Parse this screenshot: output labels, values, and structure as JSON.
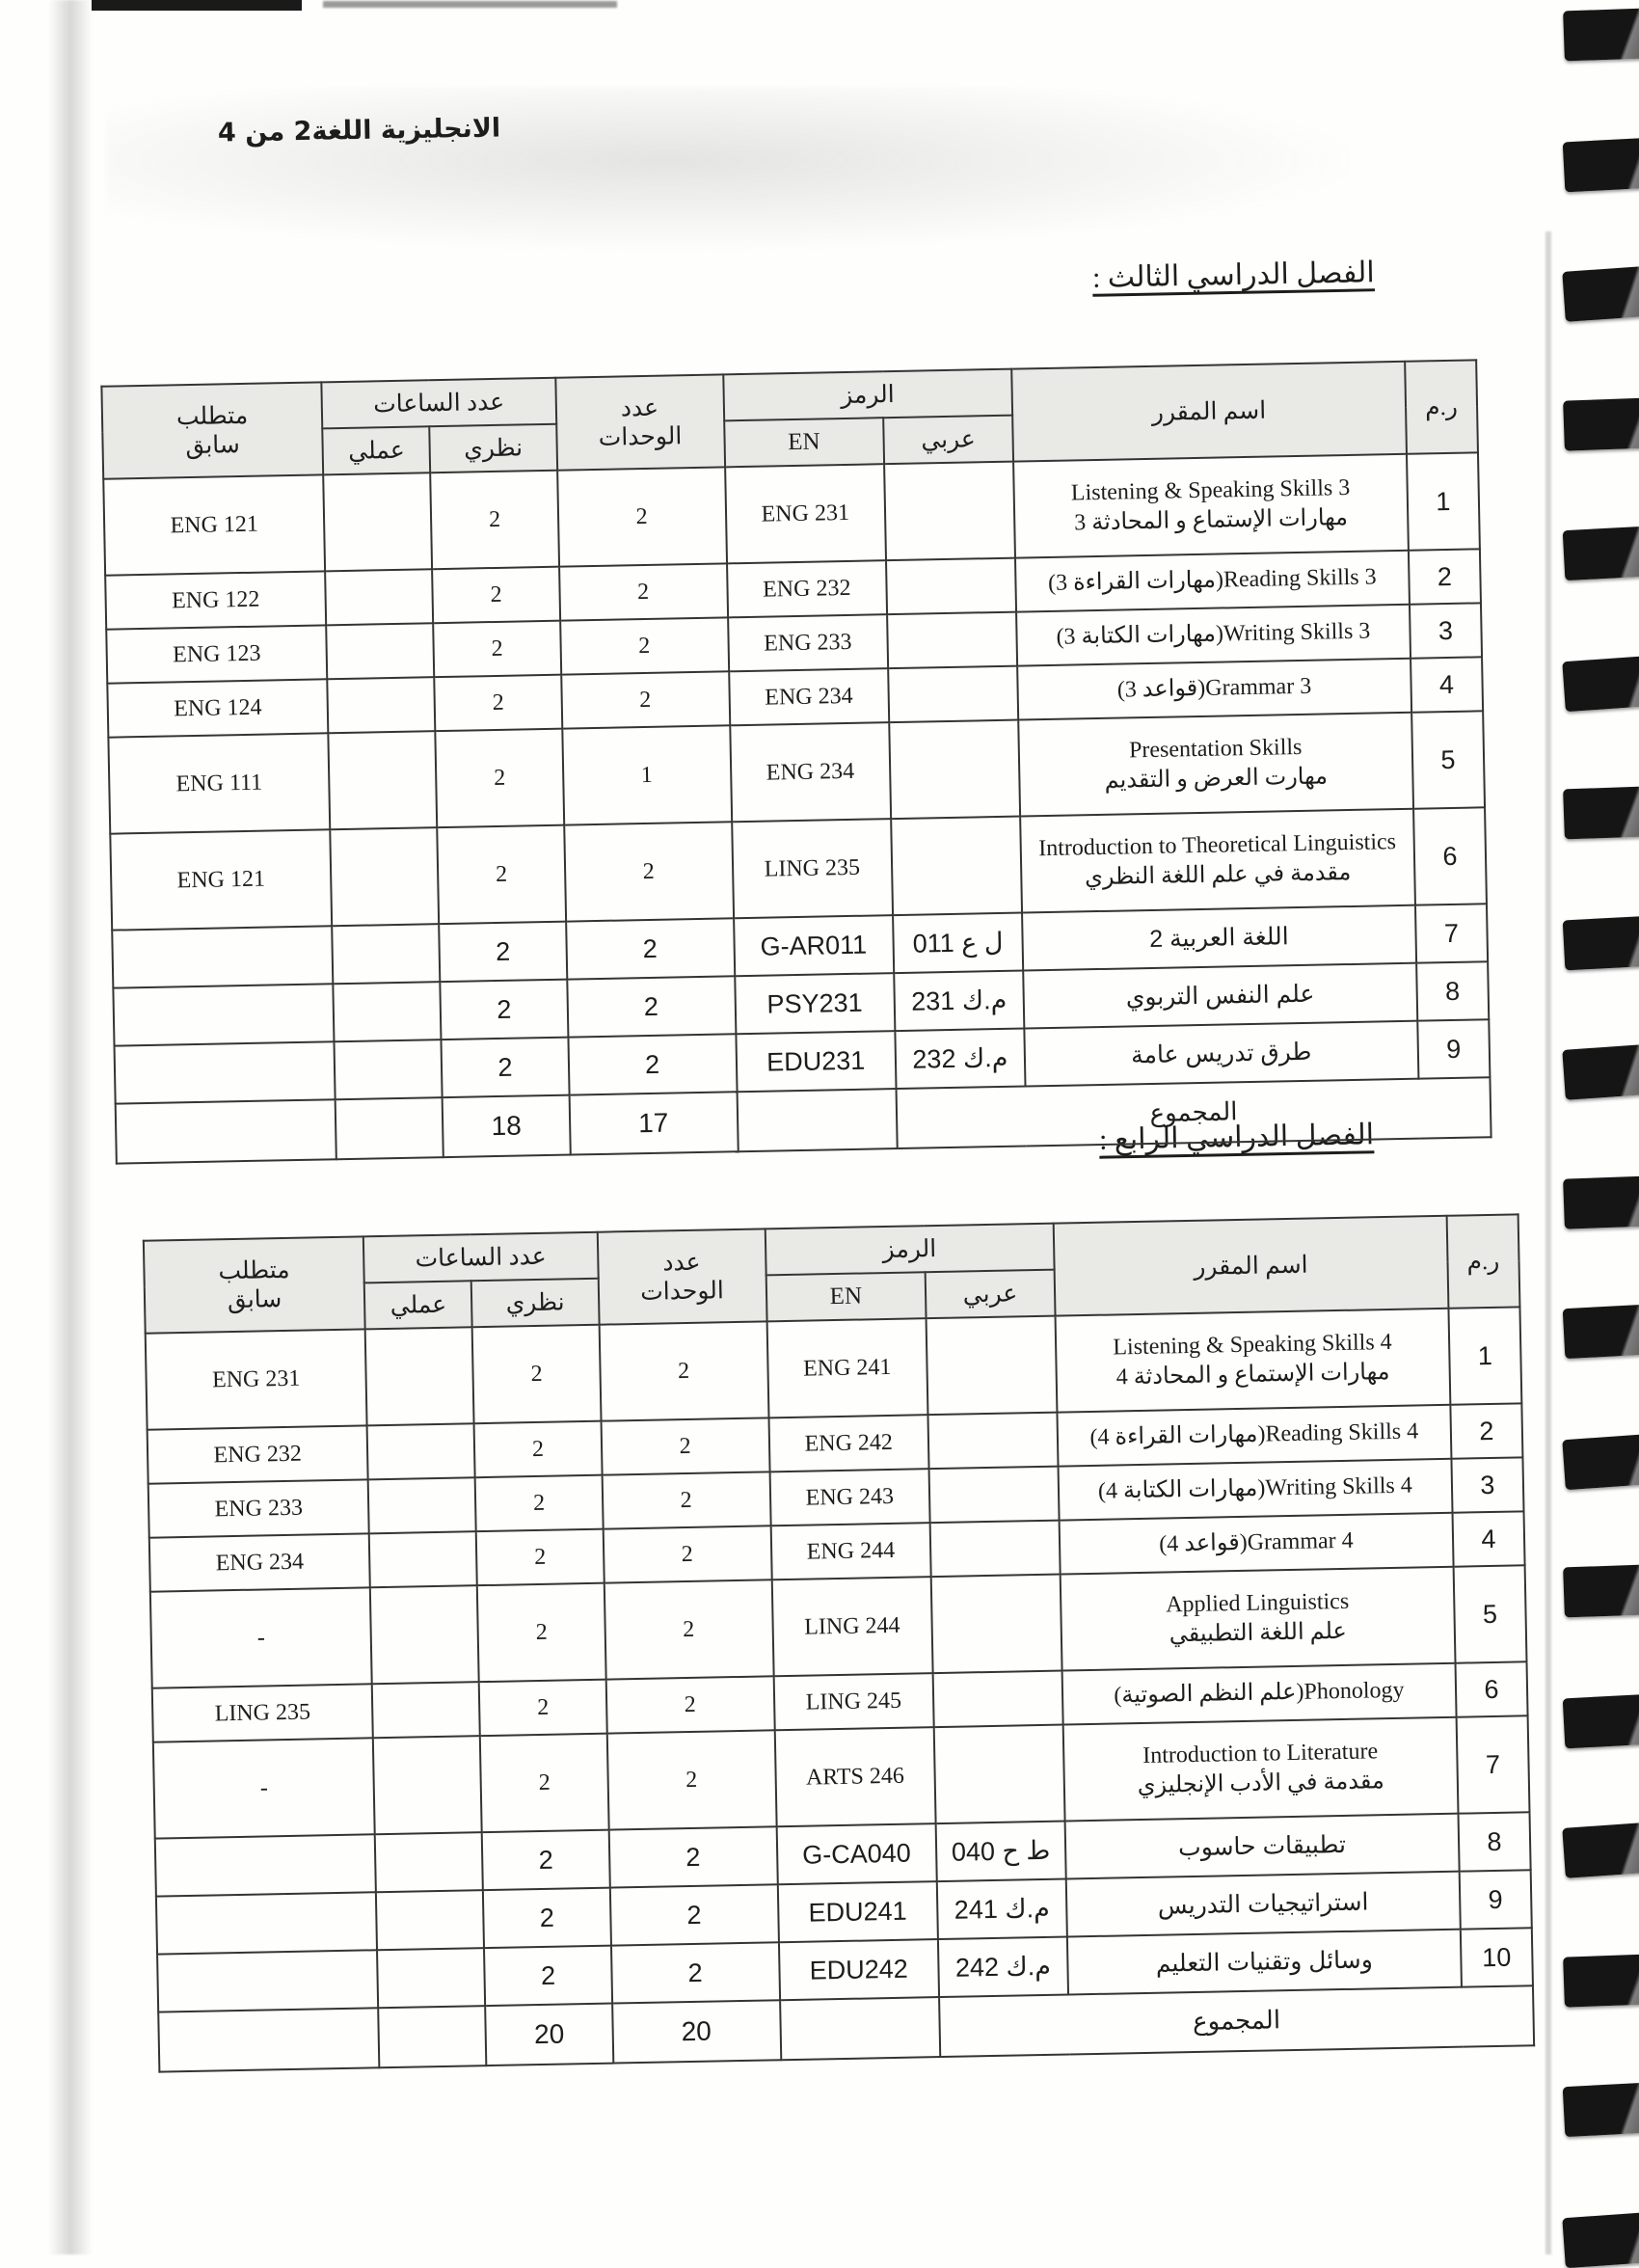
{
  "page_header": {
    "parts": [
      "2 من 4",
      "اللغة",
      "الانجليزية"
    ]
  },
  "headers": {
    "prereq_l1": "متطلب",
    "prereq_l2": "سابق",
    "hours": "عدد الساعات",
    "hours_practical": "عملي",
    "hours_theoretical": "نظري",
    "units_l1": "عدد",
    "units_l2": "الوحدات",
    "code": "الرمز",
    "code_en": "EN",
    "code_ar": "عربي",
    "course_name": "اسم المقرر",
    "row_num": "ر.م"
  },
  "tables": [
    {
      "section_title": "الفصل الدراسي الثالث :",
      "rows": [
        {
          "num": "1",
          "name": [
            "Listening & Speaking Skills 3",
            "مهارات الإستماع و المحادثة 3"
          ],
          "code_en": "ENG 231",
          "code_ar": "",
          "units": "2",
          "theory": "2",
          "practical": "",
          "prereq": "ENG 121",
          "alt": false
        },
        {
          "num": "2",
          "name": [
            "Reading Skills 3(مهارات القراءة 3)"
          ],
          "code_en": "ENG 232",
          "code_ar": "",
          "units": "2",
          "theory": "2",
          "practical": "",
          "prereq": "ENG 122",
          "alt": false
        },
        {
          "num": "3",
          "name": [
            "Writing Skills 3(مهارات الكتابة 3)"
          ],
          "code_en": "ENG 233",
          "code_ar": "",
          "units": "2",
          "theory": "2",
          "practical": "",
          "prereq": "ENG 123",
          "alt": false
        },
        {
          "num": "4",
          "name": [
            "Grammar 3(قواعد 3)"
          ],
          "code_en": "ENG 234",
          "code_ar": "",
          "units": "2",
          "theory": "2",
          "practical": "",
          "prereq": "ENG 124",
          "alt": false
        },
        {
          "num": "5",
          "name": [
            "Presentation Skills",
            "مهارت العرض و التقديم"
          ],
          "code_en": "ENG 234",
          "code_ar": "",
          "units": "1",
          "theory": "2",
          "practical": "",
          "prereq": "ENG 111",
          "alt": false
        },
        {
          "num": "6",
          "name": [
            "Introduction to Theoretical Linguistics",
            "مقدمة في علم اللغة النظري"
          ],
          "code_en": "LING 235",
          "code_ar": "",
          "units": "2",
          "theory": "2",
          "practical": "",
          "prereq": "ENG 121",
          "alt": false
        },
        {
          "num": "7",
          "name": [
            "اللغة العربية 2"
          ],
          "code_en": "G-AR011",
          "code_ar": "ل ع 011",
          "units": "2",
          "theory": "2",
          "practical": "",
          "prereq": "",
          "alt": true
        },
        {
          "num": "8",
          "name": [
            "علم النفس التربوي"
          ],
          "code_en": "PSY231",
          "code_ar": "م.ك 231",
          "units": "2",
          "theory": "2",
          "practical": "",
          "prereq": "",
          "alt": true
        },
        {
          "num": "9",
          "name": [
            "طرق تدريس عامة"
          ],
          "code_en": "EDU231",
          "code_ar": "م.ك 232",
          "units": "2",
          "theory": "2",
          "practical": "",
          "prereq": "",
          "alt": true
        }
      ],
      "totals": {
        "label": "المجموع",
        "theory": "18",
        "units": "17"
      }
    },
    {
      "section_title": "الفصل الدراسي الرابع :",
      "rows": [
        {
          "num": "1",
          "name": [
            "Listening & Speaking Skills 4",
            "مهارات الإستماع و المحادثة 4"
          ],
          "code_en": "ENG 241",
          "code_ar": "",
          "units": "2",
          "theory": "2",
          "practical": "",
          "prereq": "ENG 231",
          "alt": false
        },
        {
          "num": "2",
          "name": [
            "Reading Skills 4(مهارات القراءة 4)"
          ],
          "code_en": "ENG 242",
          "code_ar": "",
          "units": "2",
          "theory": "2",
          "practical": "",
          "prereq": "ENG 232",
          "alt": false
        },
        {
          "num": "3",
          "name": [
            "Writing Skills 4(مهارات الكتابة 4)"
          ],
          "code_en": "ENG 243",
          "code_ar": "",
          "units": "2",
          "theory": "2",
          "practical": "",
          "prereq": "ENG 233",
          "alt": false
        },
        {
          "num": "4",
          "name": [
            "Grammar 4(قواعد 4)"
          ],
          "code_en": "ENG 244",
          "code_ar": "",
          "units": "2",
          "theory": "2",
          "practical": "",
          "prereq": "ENG 234",
          "alt": false
        },
        {
          "num": "5",
          "name": [
            "Applied Linguistics",
            "علم اللغة التطبيقي"
          ],
          "code_en": "LING 244",
          "code_ar": "",
          "units": "2",
          "theory": "2",
          "practical": "",
          "prereq": "-",
          "alt": false
        },
        {
          "num": "6",
          "name": [
            "Phonology(علم النظم الصوتية)"
          ],
          "code_en": "LING 245",
          "code_ar": "",
          "units": "2",
          "theory": "2",
          "practical": "",
          "prereq": "LING 235",
          "alt": false
        },
        {
          "num": "7",
          "name": [
            "Introduction to Literature",
            "مقدمة في الأدب الإنجليزي"
          ],
          "code_en": "ARTS 246",
          "code_ar": "",
          "units": "2",
          "theory": "2",
          "practical": "",
          "prereq": "-",
          "alt": false
        },
        {
          "num": "8",
          "name": [
            "تطبيقات حاسوب"
          ],
          "code_en": "G-CA040",
          "code_ar": "ط ح 040",
          "units": "2",
          "theory": "2",
          "practical": "",
          "prereq": "",
          "alt": true
        },
        {
          "num": "9",
          "name": [
            "استراتيجيات التدريس"
          ],
          "code_en": "EDU241",
          "code_ar": "م.ك 241",
          "units": "2",
          "theory": "2",
          "practical": "",
          "prereq": "",
          "alt": true
        },
        {
          "num": "10",
          "name": [
            "وسائل وتقنيات التعليم"
          ],
          "code_en": "EDU242",
          "code_ar": "م.ك 242",
          "units": "2",
          "theory": "2",
          "practical": "",
          "prereq": "",
          "alt": true
        }
      ],
      "totals": {
        "label": "المجموع",
        "theory": "20",
        "units": "20"
      }
    }
  ]
}
